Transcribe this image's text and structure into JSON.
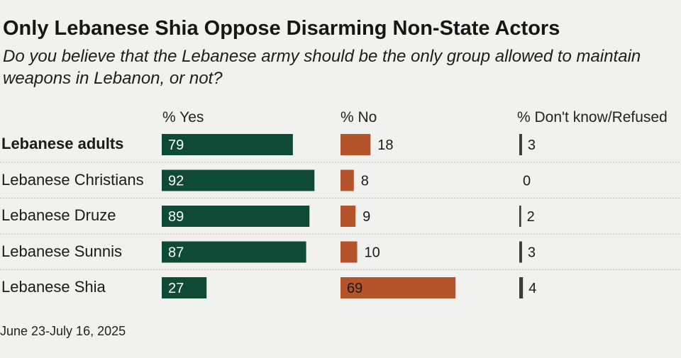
{
  "title": "Only Lebanese Shia Oppose Disarming Non-State Actors",
  "subtitle": "Do you believe that the Lebanese army should be the only group allowed to maintain weapons in Lebanon, or not?",
  "columns": {
    "yes": "% Yes",
    "no": "% No",
    "dk": "% Don't know/Refused"
  },
  "footer": "June 23-July 16, 2025",
  "colors": {
    "yes": "#0f4a36",
    "no": "#b5542a",
    "dk": "#3a3a3a",
    "rule": "#bdbdbd"
  },
  "chart_data": {
    "type": "bar",
    "title": "Only Lebanese Shia Oppose Disarming Non-State Actors",
    "categories": [
      "Lebanese adults",
      "Lebanese Christians",
      "Lebanese Druze",
      "Lebanese Sunnis",
      "Lebanese Shia"
    ],
    "series": [
      {
        "name": "% Yes",
        "values": [
          79,
          92,
          89,
          87,
          27
        ]
      },
      {
        "name": "% No",
        "values": [
          18,
          8,
          9,
          10,
          69
        ]
      },
      {
        "name": "% Don't know/Refused",
        "values": [
          3,
          0,
          2,
          3,
          4
        ]
      }
    ],
    "bold_categories": [
      "Lebanese adults"
    ],
    "xlabel": "",
    "ylabel": ""
  }
}
